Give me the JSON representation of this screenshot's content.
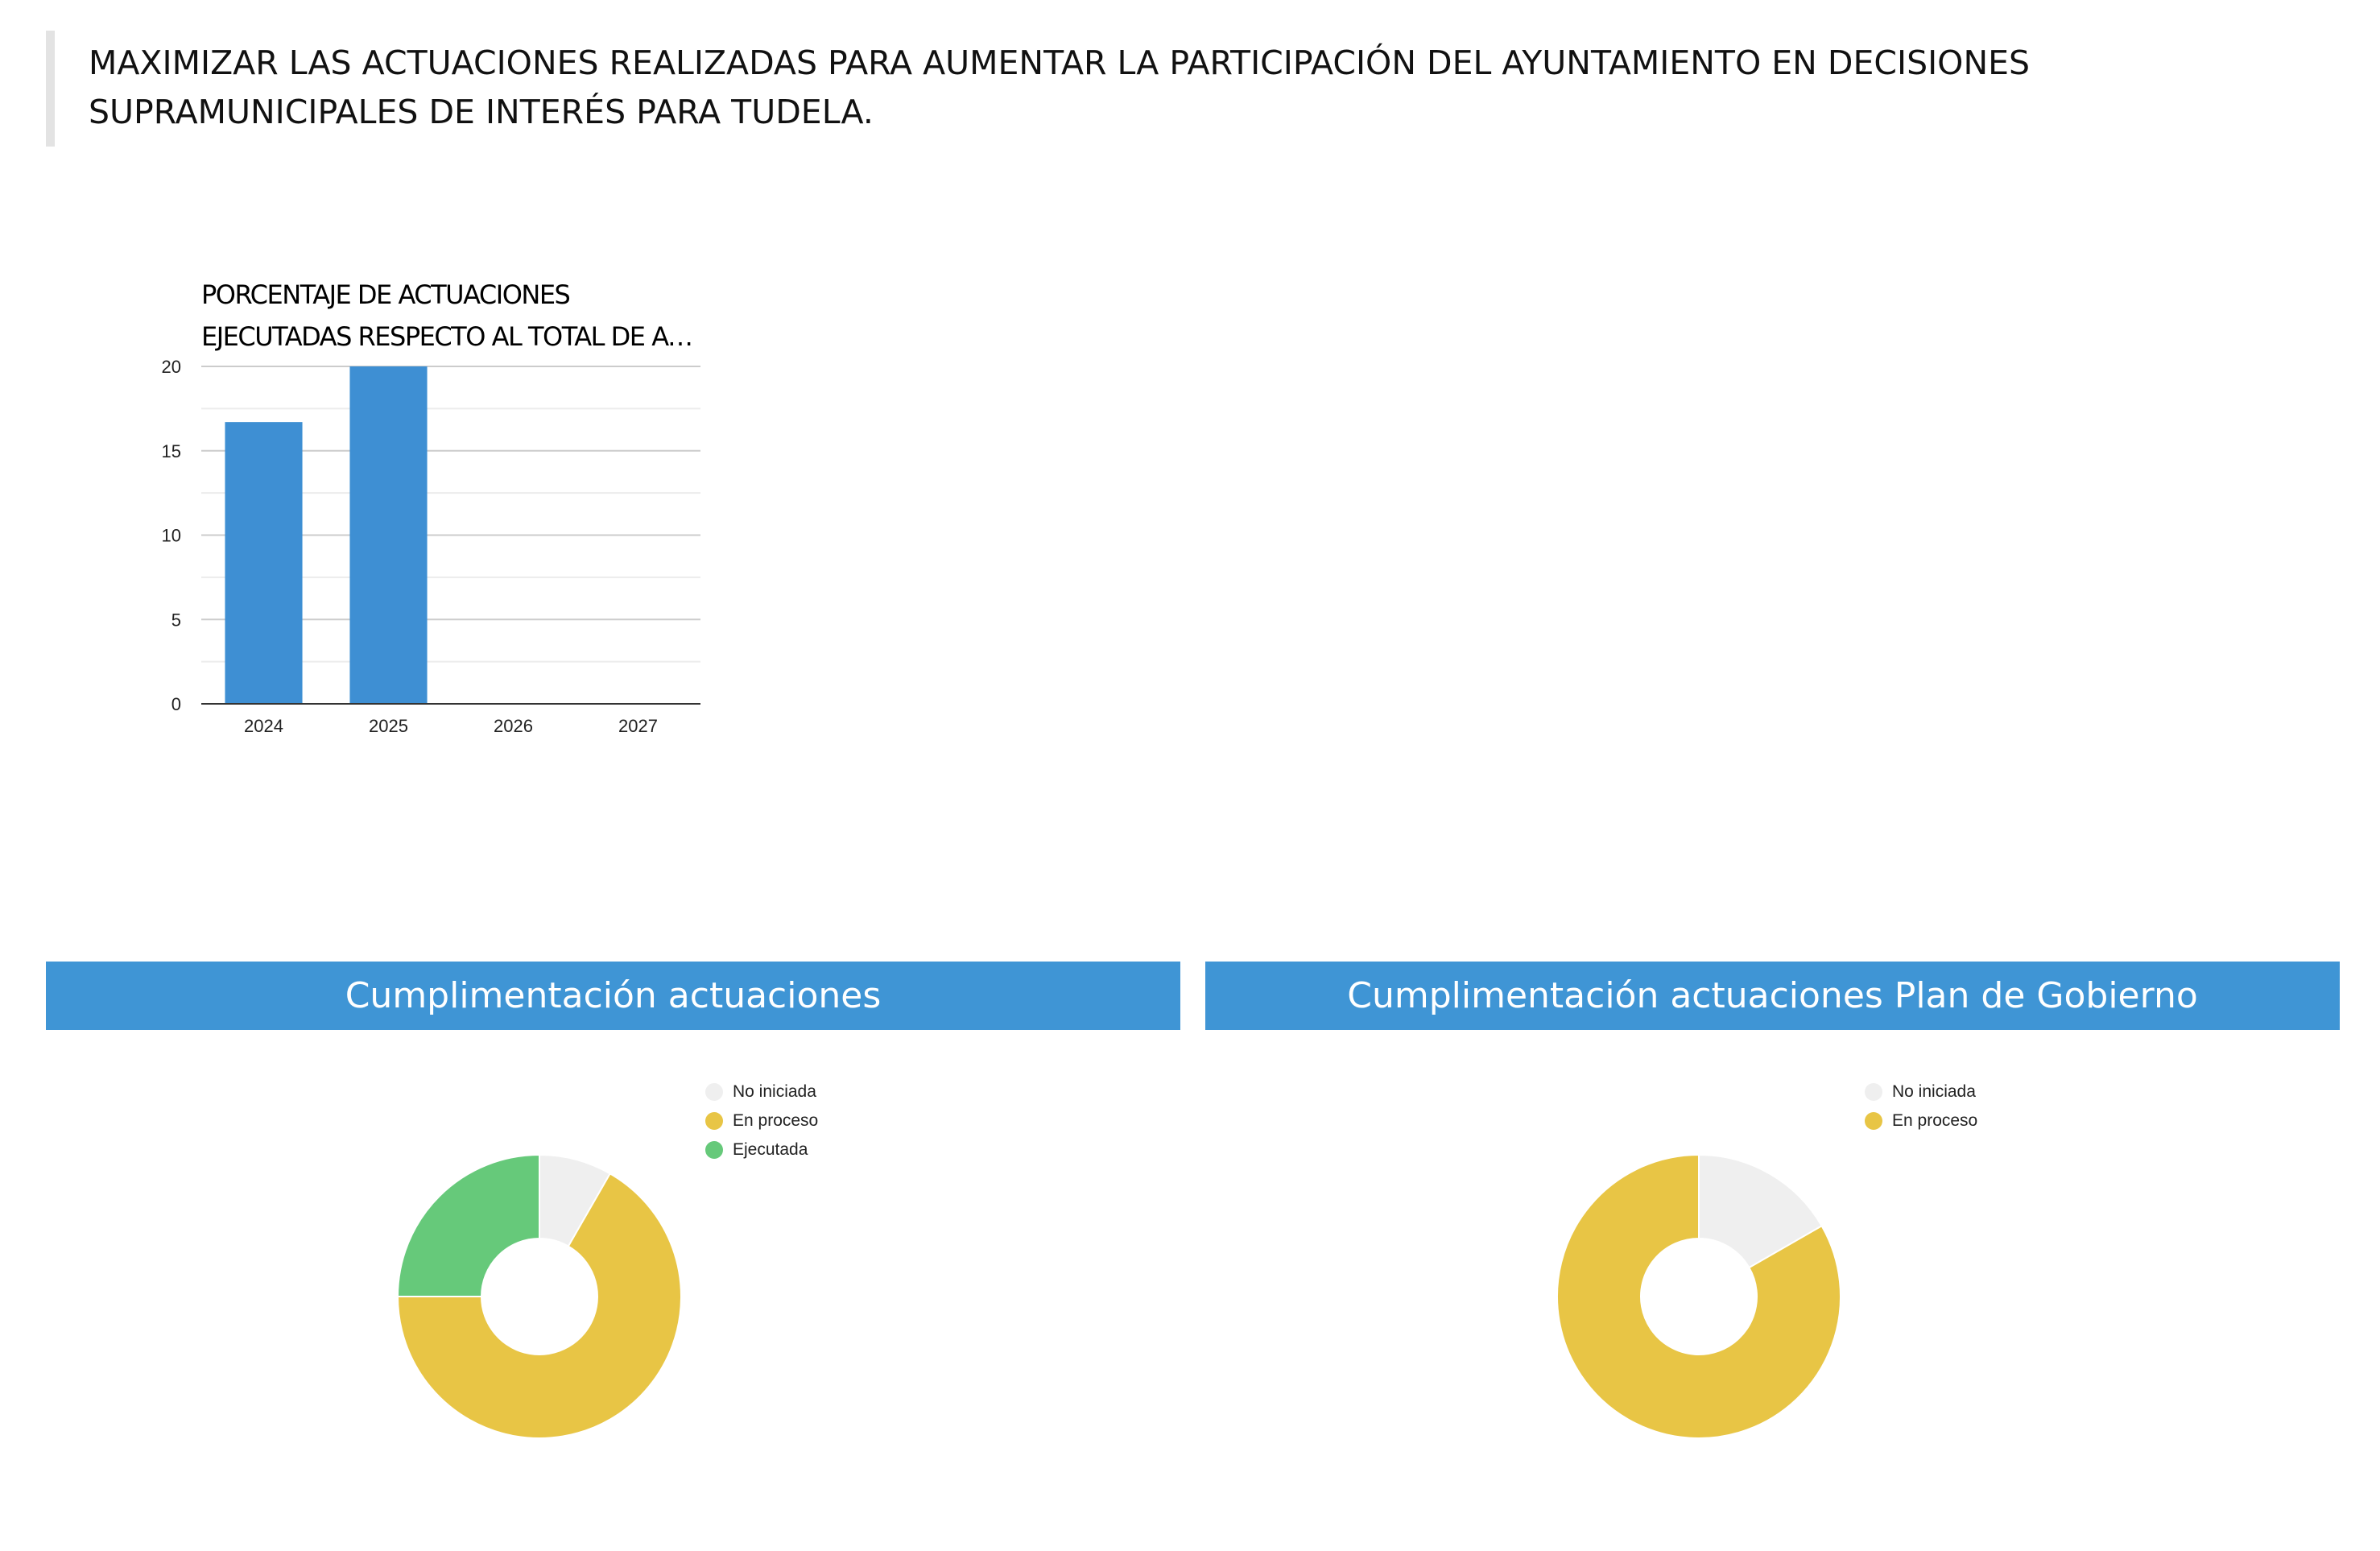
{
  "objective": {
    "text": "MAXIMIZAR LAS ACTUACIONES REALIZADAS PARA AUMENTAR LA PARTICIPACIÓN DEL AYUNTAMIENTO EN DECISIONES SUPRAMUNICIPALES DE INTERÉS PARA TUDELA."
  },
  "colors": {
    "bar": "#3e8fd3",
    "header": "#3f95d5",
    "no_iniciada": "#efefef",
    "en_proceso": "#e8c545",
    "ejecutada": "#66c97a"
  },
  "chart_data": [
    {
      "type": "bar",
      "title_lines": [
        "PORCENTAJE DE ACTUACIONES",
        "EJECUTADAS RESPECTO AL TOTAL DE ACT..."
      ],
      "categories": [
        "2024",
        "2025",
        "2026",
        "2027"
      ],
      "values": [
        16.7,
        20,
        0,
        0
      ],
      "ylim": [
        0,
        20
      ],
      "yticks": [
        "0",
        "5",
        "10",
        "15",
        "20"
      ],
      "grid": true
    },
    {
      "type": "pie",
      "title": "Cumplimentación actuaciones",
      "legend_position": "top-right",
      "slices": [
        {
          "label": "No iniciada",
          "value": 8.3
        },
        {
          "label": "En proceso",
          "value": 66.7
        },
        {
          "label": "Ejecutada",
          "value": 25
        }
      ]
    },
    {
      "type": "pie",
      "title": "Cumplimentación actuaciones Plan de Gobierno",
      "legend_position": "top-right",
      "slices": [
        {
          "label": "No iniciada",
          "value": 16.7
        },
        {
          "label": "En proceso",
          "value": 83.3
        }
      ]
    }
  ]
}
